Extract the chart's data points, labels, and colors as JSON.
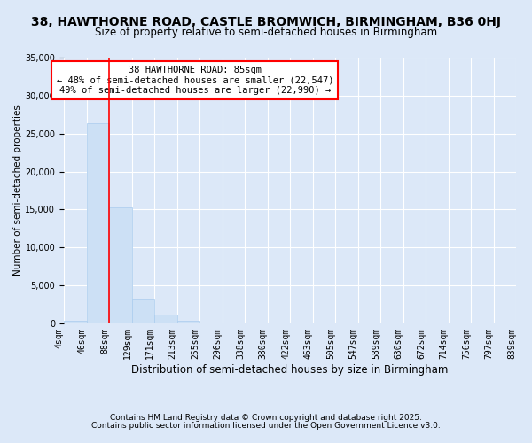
{
  "title": "38, HAWTHORNE ROAD, CASTLE BROMWICH, BIRMINGHAM, B36 0HJ",
  "subtitle": "Size of property relative to semi-detached houses in Birmingham",
  "xlabel": "Distribution of semi-detached houses by size in Birmingham",
  "ylabel": "Number of semi-detached properties",
  "bar_values": [
    350,
    26400,
    15300,
    3100,
    1200,
    400,
    100,
    0,
    0,
    0,
    0,
    0,
    0,
    0,
    0,
    0,
    0,
    0,
    0,
    0
  ],
  "bin_labels": [
    "4sqm",
    "46sqm",
    "88sqm",
    "129sqm",
    "171sqm",
    "213sqm",
    "255sqm",
    "296sqm",
    "338sqm",
    "380sqm",
    "422sqm",
    "463sqm",
    "505sqm",
    "547sqm",
    "589sqm",
    "630sqm",
    "672sqm",
    "714sqm",
    "756sqm",
    "797sqm",
    "839sqm"
  ],
  "bar_color": "#cce0f5",
  "bar_edge_color": "#aaccee",
  "vline_x": 2,
  "vline_color": "red",
  "ylim": [
    0,
    35000
  ],
  "yticks": [
    0,
    5000,
    10000,
    15000,
    20000,
    25000,
    30000,
    35000
  ],
  "annotation_title": "38 HAWTHORNE ROAD: 85sqm",
  "annotation_line1": "← 48% of semi-detached houses are smaller (22,547)",
  "annotation_line2": "49% of semi-detached houses are larger (22,990) →",
  "annotation_box_color": "white",
  "annotation_box_edge_color": "red",
  "bg_color": "#dce8f8",
  "footer1": "Contains HM Land Registry data © Crown copyright and database right 2025.",
  "footer2": "Contains public sector information licensed under the Open Government Licence v3.0.",
  "title_fontsize": 10,
  "subtitle_fontsize": 8.5,
  "ylabel_fontsize": 7.5,
  "xlabel_fontsize": 8.5,
  "tick_fontsize": 7,
  "footer_fontsize": 6.5,
  "ann_fontsize": 7.5
}
